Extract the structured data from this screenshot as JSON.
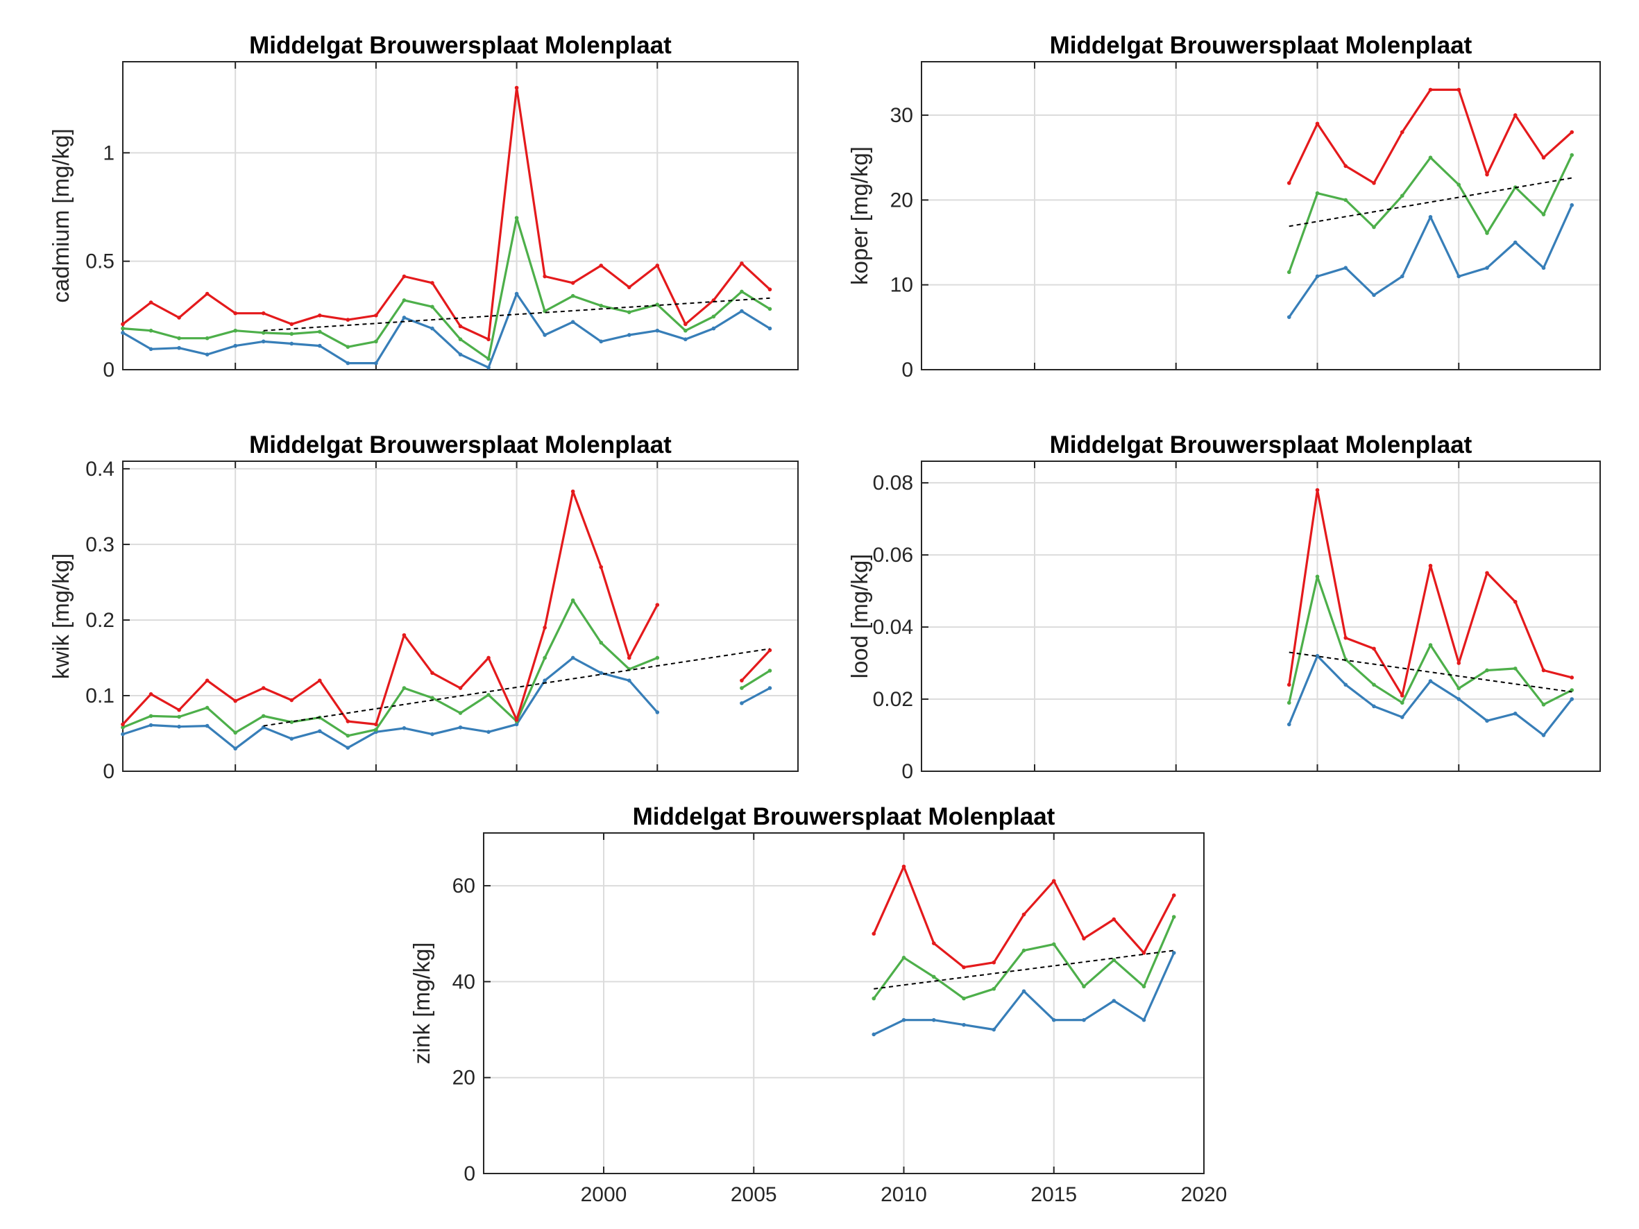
{
  "figure": {
    "background": "#ffffff",
    "x_ticks": [
      "2000",
      "2005",
      "2010",
      "2015",
      "2020"
    ],
    "series_colors": {
      "upper": "#e41a1c",
      "median": "#4daf4a",
      "lower": "#377eb8",
      "trend": "#000000"
    }
  },
  "chart_data": [
    {
      "type": "line",
      "title": "Middelgat Brouwersplaat Molenplaat",
      "ylabel": "cadmium [mg/kg]",
      "xlim": [
        1996,
        2020
      ],
      "ylim": [
        0,
        1.42
      ],
      "yticks": [
        0,
        0.5,
        1
      ],
      "ytick_labels": [
        "0",
        "0.5",
        "1"
      ],
      "xticks": [
        2000,
        2005,
        2010,
        2015,
        2020
      ],
      "show_x_tick_labels": false,
      "grid": true,
      "x": [
        1996,
        1997,
        1998,
        1999,
        2000,
        2001,
        2002,
        2003,
        2004,
        2005,
        2006,
        2007,
        2008,
        2009,
        2010,
        2011,
        2012,
        2013,
        2014,
        2015,
        2016,
        2017,
        2018,
        2019
      ],
      "series": [
        {
          "role": "upper",
          "values": [
            0.21,
            0.31,
            0.24,
            0.35,
            0.26,
            0.26,
            0.21,
            0.25,
            0.23,
            0.25,
            0.43,
            0.4,
            0.2,
            0.14,
            1.3,
            0.43,
            0.4,
            0.48,
            0.38,
            0.48,
            0.21,
            0.32,
            0.49,
            0.37
          ]
        },
        {
          "role": "median",
          "values": [
            0.19,
            0.18,
            0.145,
            0.145,
            0.18,
            0.17,
            0.165,
            0.175,
            0.105,
            0.13,
            0.32,
            0.29,
            0.14,
            0.05,
            0.7,
            0.27,
            0.34,
            0.295,
            0.265,
            0.3,
            0.18,
            0.245,
            0.36,
            0.28
          ]
        },
        {
          "role": "lower",
          "values": [
            0.17,
            0.095,
            0.1,
            0.07,
            0.11,
            0.13,
            0.12,
            0.11,
            0.03,
            0.03,
            0.24,
            0.19,
            0.07,
            0.01,
            0.35,
            0.16,
            0.22,
            0.13,
            0.16,
            0.18,
            0.14,
            0.19,
            0.27,
            0.19
          ]
        }
      ],
      "trend": {
        "x": [
          2001,
          2019
        ],
        "y": [
          0.18,
          0.33
        ]
      }
    },
    {
      "type": "line",
      "title": "Middelgat Brouwersplaat Molenplaat",
      "ylabel": "koper [mg/kg]",
      "xlim": [
        1996,
        2020
      ],
      "ylim": [
        0,
        36.3
      ],
      "yticks": [
        0,
        10,
        20,
        30
      ],
      "ytick_labels": [
        "0",
        "10",
        "20",
        "30"
      ],
      "xticks": [
        2000,
        2005,
        2010,
        2015,
        2020
      ],
      "show_x_tick_labels": false,
      "grid": true,
      "x": [
        2009,
        2010,
        2011,
        2012,
        2013,
        2014,
        2015,
        2016,
        2017,
        2018,
        2019
      ],
      "series": [
        {
          "role": "upper",
          "values": [
            22,
            29,
            24,
            22,
            28,
            33,
            33,
            23,
            30,
            25,
            28
          ]
        },
        {
          "role": "median",
          "values": [
            11.5,
            20.8,
            20,
            16.8,
            20.5,
            25,
            21.8,
            16.1,
            21.5,
            18.3,
            25.3
          ]
        },
        {
          "role": "lower",
          "values": [
            6.2,
            11,
            12,
            8.8,
            11,
            18,
            11,
            12,
            15,
            12,
            19.4
          ]
        }
      ],
      "trend": {
        "x": [
          2009,
          2019
        ],
        "y": [
          16.9,
          22.6
        ]
      }
    },
    {
      "type": "line",
      "title": "Middelgat Brouwersplaat Molenplaat",
      "ylabel": "kwik [mg/kg]",
      "xlim": [
        1996,
        2020
      ],
      "ylim": [
        0,
        0.41
      ],
      "yticks": [
        0,
        0.1,
        0.2,
        0.3,
        0.4
      ],
      "ytick_labels": [
        "0",
        "0.1",
        "0.2",
        "0.3",
        "0.4"
      ],
      "xticks": [
        2000,
        2005,
        2010,
        2015,
        2020
      ],
      "show_x_tick_labels": false,
      "grid": true,
      "x": [
        1996,
        1997,
        1998,
        1999,
        2000,
        2001,
        2002,
        2003,
        2004,
        2005,
        2006,
        2007,
        2008,
        2009,
        2010,
        2011,
        2012,
        2013,
        2014,
        2015,
        2016,
        2017,
        2018,
        2019
      ],
      "series": [
        {
          "role": "upper",
          "values": [
            0.062,
            0.102,
            0.081,
            0.12,
            0.093,
            0.11,
            0.094,
            0.12,
            0.066,
            0.062,
            0.18,
            0.13,
            0.11,
            0.15,
            0.068,
            0.19,
            0.37,
            0.27,
            0.15,
            0.22,
            null,
            null,
            0.12,
            0.16
          ]
        },
        {
          "role": "median",
          "values": [
            0.058,
            0.073,
            0.072,
            0.084,
            0.051,
            0.073,
            0.065,
            0.071,
            0.047,
            0.055,
            0.11,
            0.097,
            0.077,
            0.101,
            0.066,
            0.15,
            0.226,
            0.17,
            0.135,
            0.15,
            null,
            null,
            0.11,
            0.133
          ]
        },
        {
          "role": "lower",
          "values": [
            0.049,
            0.061,
            0.059,
            0.06,
            0.03,
            0.058,
            0.043,
            0.053,
            0.031,
            0.052,
            0.057,
            0.049,
            0.058,
            0.052,
            0.062,
            0.12,
            0.15,
            0.13,
            0.12,
            0.078,
            null,
            null,
            0.09,
            0.11
          ]
        }
      ],
      "trend": {
        "x": [
          2001,
          2019
        ],
        "y": [
          0.06,
          0.162
        ]
      }
    },
    {
      "type": "line",
      "title": "Middelgat Brouwersplaat Molenplaat",
      "ylabel": "lood [mg/kg]",
      "xlim": [
        1996,
        2020
      ],
      "ylim": [
        0,
        0.086
      ],
      "yticks": [
        0,
        0.02,
        0.04,
        0.06,
        0.08
      ],
      "ytick_labels": [
        "0",
        "0.02",
        "0.04",
        "0.06",
        "0.08"
      ],
      "xticks": [
        2000,
        2005,
        2010,
        2015,
        2020
      ],
      "show_x_tick_labels": false,
      "grid": true,
      "x": [
        2009,
        2010,
        2011,
        2012,
        2013,
        2014,
        2015,
        2016,
        2017,
        2018,
        2019
      ],
      "series": [
        {
          "role": "upper",
          "values": [
            0.024,
            0.078,
            0.037,
            0.034,
            0.021,
            0.057,
            0.03,
            0.055,
            0.047,
            0.028,
            0.026
          ]
        },
        {
          "role": "median",
          "values": [
            0.019,
            0.054,
            0.031,
            0.024,
            0.019,
            0.035,
            0.023,
            0.028,
            0.0285,
            0.0185,
            0.0225
          ]
        },
        {
          "role": "lower",
          "values": [
            0.013,
            0.032,
            0.024,
            0.018,
            0.015,
            0.025,
            0.02,
            0.014,
            0.016,
            0.01,
            0.02
          ]
        }
      ],
      "trend": {
        "x": [
          2009,
          2019
        ],
        "y": [
          0.033,
          0.022
        ]
      }
    },
    {
      "type": "line",
      "title": "Middelgat Brouwersplaat Molenplaat",
      "ylabel": "zink [mg/kg]",
      "xlim": [
        1996,
        2020
      ],
      "ylim": [
        0,
        71
      ],
      "yticks": [
        0,
        20,
        40,
        60
      ],
      "ytick_labels": [
        "0",
        "20",
        "40",
        "60"
      ],
      "xticks": [
        2000,
        2005,
        2010,
        2015,
        2020
      ],
      "xtick_labels": [
        "2000",
        "2005",
        "2010",
        "2015",
        "2020"
      ],
      "show_x_tick_labels": true,
      "grid": true,
      "x": [
        2009,
        2010,
        2011,
        2012,
        2013,
        2014,
        2015,
        2016,
        2017,
        2018,
        2019
      ],
      "series": [
        {
          "role": "upper",
          "values": [
            50,
            64,
            48,
            43,
            44,
            54,
            61,
            49,
            53,
            46,
            58
          ]
        },
        {
          "role": "median",
          "values": [
            36.5,
            45,
            41,
            36.5,
            38.5,
            46.5,
            47.8,
            39,
            44.5,
            39,
            53.5
          ]
        },
        {
          "role": "lower",
          "values": [
            29,
            32,
            32,
            31,
            30,
            38,
            32,
            32,
            36,
            32,
            46
          ]
        }
      ],
      "trend": {
        "x": [
          2009,
          2019
        ],
        "y": [
          38.5,
          46.5
        ]
      }
    }
  ]
}
